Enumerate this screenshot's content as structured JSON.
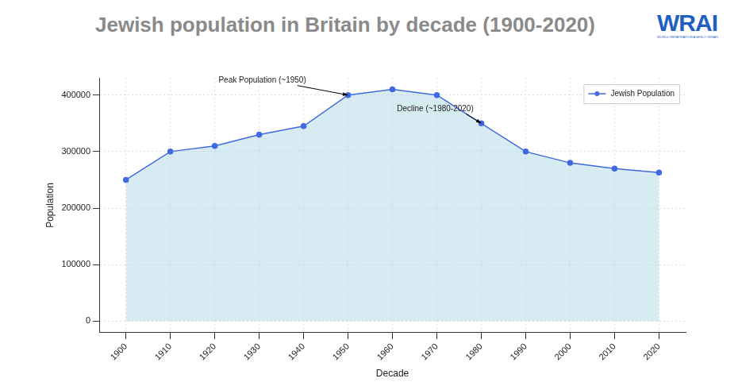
{
  "chart_data": {
    "type": "area",
    "title": "Jewish population in Britain by decade (1900-2020)",
    "logo": {
      "text": "WRAI",
      "subtext": "WORLD REPATRIATION AGENCY ISRAEL"
    },
    "x_label": "Decade",
    "y_label": "Population",
    "x": [
      1900,
      1910,
      1920,
      1930,
      1940,
      1950,
      1960,
      1970,
      1980,
      1990,
      2000,
      2010,
      2020
    ],
    "series": [
      {
        "name": "Jewish Population",
        "color": "#4169e1",
        "marker": "circle",
        "line_style": "solid",
        "values": [
          250000,
          300000,
          310000,
          330000,
          345000,
          400000,
          410000,
          400000,
          350000,
          300000,
          280000,
          270000,
          263000
        ]
      }
    ],
    "xlim": [
      1894,
      2026
    ],
    "xticks": [
      1900,
      1910,
      1920,
      1930,
      1940,
      1950,
      1960,
      1970,
      1980,
      1990,
      2000,
      2010,
      2020
    ],
    "ylim": [
      -20500,
      430500
    ],
    "yticks": [
      0,
      100000,
      200000,
      300000,
      400000
    ],
    "annotations": [
      {
        "text": "Peak Population (~1950)",
        "x": 1950,
        "y": 400000
      },
      {
        "text": "Decline (~1980-2020)",
        "x": 1980,
        "y": 350000
      }
    ],
    "grid": true,
    "legend": "upper right"
  }
}
